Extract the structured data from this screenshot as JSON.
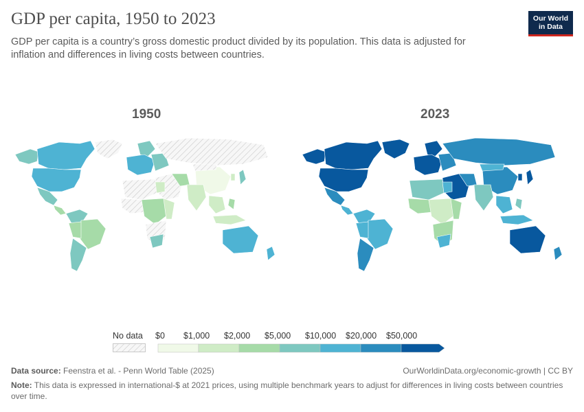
{
  "header": {
    "title": "GDP per capita, 1950 to 2023",
    "subtitle": "GDP per capita is a country’s gross domestic product divided by its population. This data is adjusted for inflation and differences in living costs between countries."
  },
  "logo": {
    "line1": "Our World",
    "line2": "in Data"
  },
  "maps": [
    {
      "year": "1950"
    },
    {
      "year": "2023"
    }
  ],
  "legend": {
    "no_data_label": "No data",
    "bins": [
      "$0",
      "$1,000",
      "$2,000",
      "$5,000",
      "$10,000",
      "$20,000",
      "$50,000"
    ],
    "colors": [
      "#f0f9e8",
      "#cfecc6",
      "#a6dba8",
      "#7ec8c0",
      "#4eb3d3",
      "#2b8cbe",
      "#08589e"
    ]
  },
  "footer": {
    "source_label": "Data source:",
    "source": "Feenstra et al. - Penn World Table (2025)",
    "url": "OurWorldinData.org/economic-growth | CC BY",
    "note_label": "Note:",
    "note": "This data is expressed in international-$ at 2021 prices, using multiple benchmark years to adjust for differences in living costs between countries over time."
  }
}
